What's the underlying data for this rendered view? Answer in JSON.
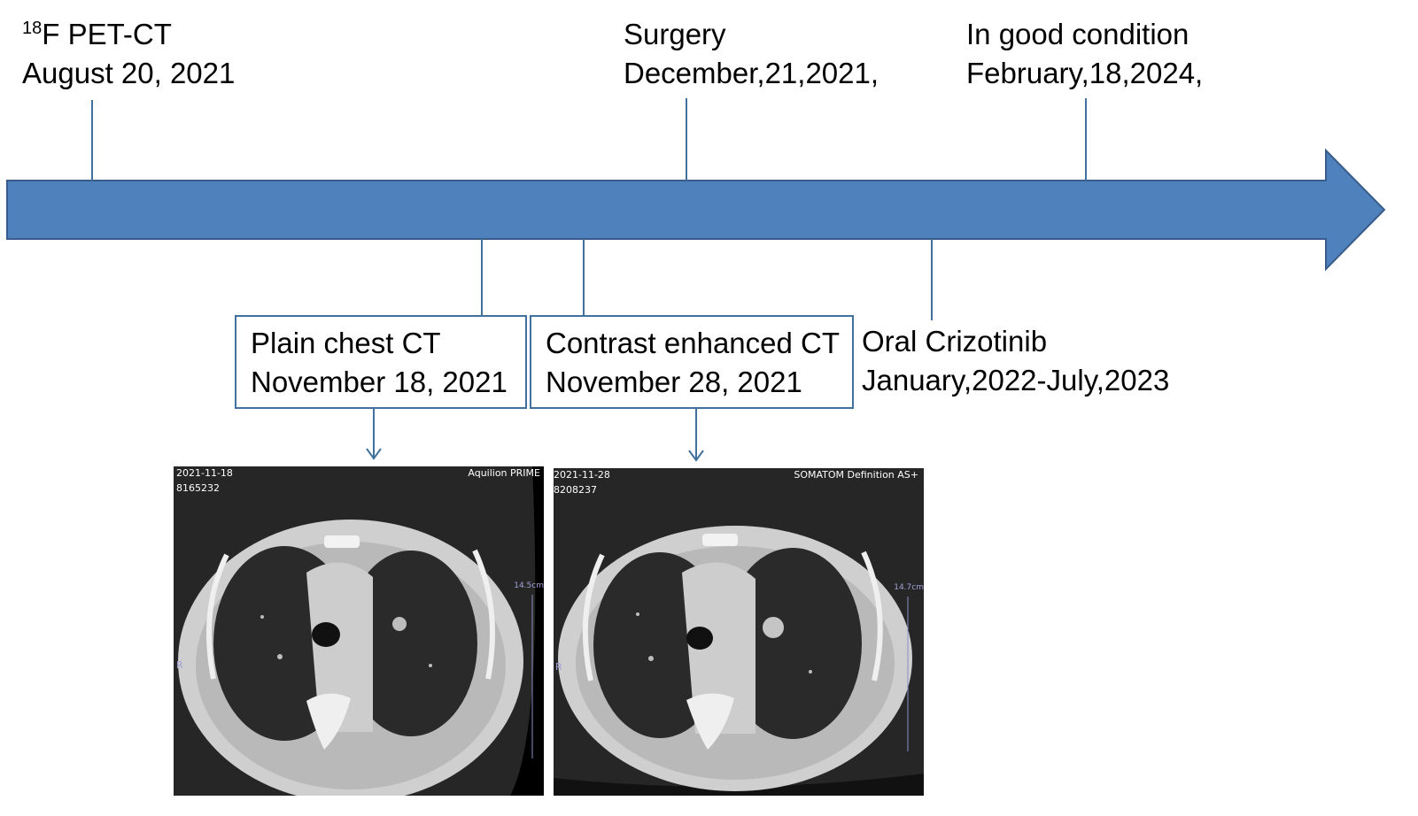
{
  "events_top": [
    {
      "pre": "18",
      "line1": "F PET-CT",
      "line2": "August 20, 2021"
    },
    {
      "line1": "Surgery",
      "line2": "December,21,2021,"
    },
    {
      "line1": "In good condition",
      "line2": "February,18,2024,"
    }
  ],
  "events_bottom": [
    {
      "line1": "Plain chest CT",
      "line2": "November 18, 2021"
    },
    {
      "line1": "Contrast enhanced CT",
      "line2": "November 28, 2021"
    },
    {
      "line1": "Oral Crizotinib",
      "line2": "January,2022-July,2023"
    }
  ],
  "images": [
    {
      "date": "2021-11-18",
      "id": "8165232",
      "scanner": "Aquilion PRIME",
      "scale": "14.5cm",
      "side": "R"
    },
    {
      "date": "2021-11-28",
      "id": "8208237",
      "scanner": "SOMATOM Definition AS+",
      "scale": "14.7cm",
      "side": "R"
    }
  ],
  "colors": {
    "arrow": "#4f81bd",
    "arrow_edge": "#385d8a",
    "connector": "#41719c",
    "box_border": "#41719c"
  }
}
